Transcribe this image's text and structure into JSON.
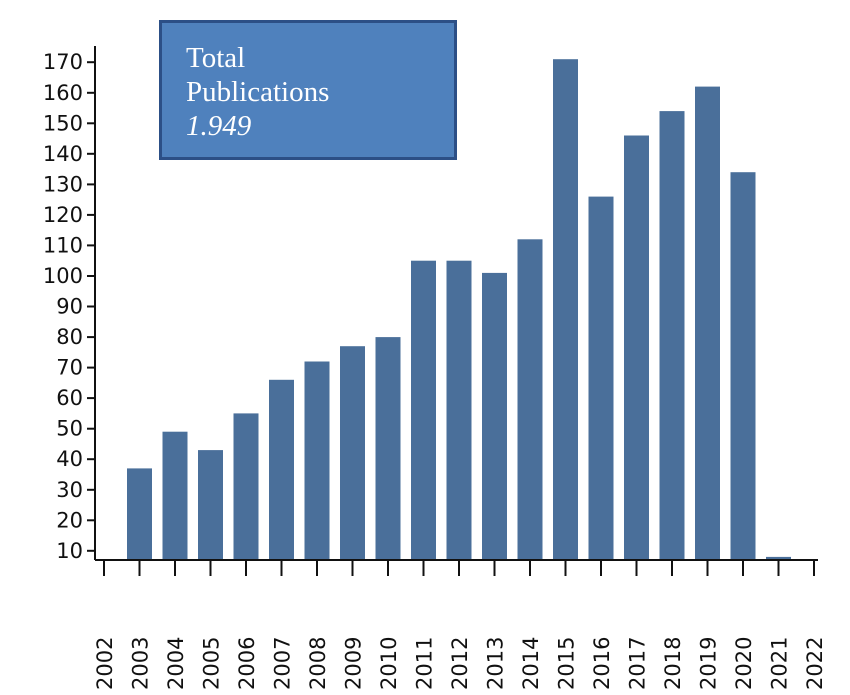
{
  "chart_data": {
    "type": "bar",
    "categories": [
      "2002",
      "2003",
      "2004",
      "2005",
      "2006",
      "2007",
      "2008",
      "2009",
      "2010",
      "2011",
      "2012",
      "2013",
      "2014",
      "2015",
      "2016",
      "2017",
      "2018",
      "2019",
      "2020",
      "2021",
      "2022"
    ],
    "values": [
      null,
      37,
      49,
      43,
      55,
      66,
      72,
      77,
      80,
      105,
      105,
      101,
      112,
      171,
      126,
      146,
      154,
      162,
      134,
      8,
      null
    ],
    "yticks": [
      10,
      20,
      30,
      40,
      50,
      60,
      70,
      80,
      90,
      100,
      110,
      120,
      130,
      140,
      150,
      160,
      170
    ],
    "ylim": [
      7,
      174
    ],
    "bar_color": "#4a6f9a",
    "grid": false,
    "title": "",
    "xlabel": "",
    "ylabel": ""
  },
  "info_box": {
    "line1": "Total",
    "line2": "Publications",
    "value": "1.949",
    "background": "#4f81bd",
    "border": "#2c4f86"
  }
}
